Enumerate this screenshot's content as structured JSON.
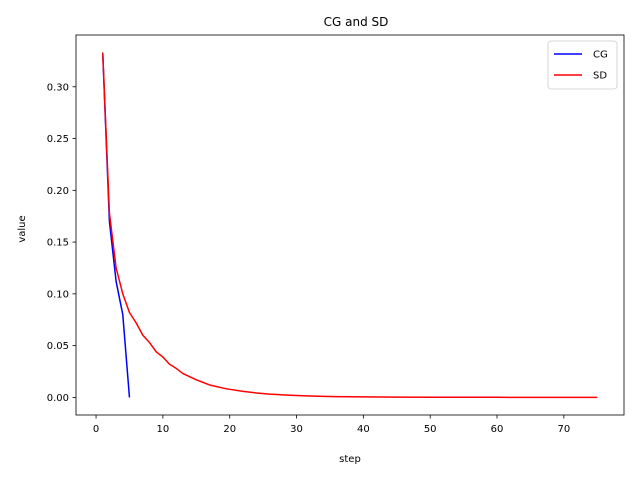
{
  "chart_data": {
    "type": "line",
    "title": "CG and SD",
    "xlabel": "step",
    "ylabel": "value",
    "xlim": [
      -3,
      79
    ],
    "ylim": [
      -0.017,
      0.35
    ],
    "xticks": [
      0,
      10,
      20,
      30,
      40,
      50,
      60,
      70
    ],
    "yticks": [
      0.0,
      0.05,
      0.1,
      0.15,
      0.2,
      0.25,
      0.3
    ],
    "xtick_labels": [
      "0",
      "10",
      "20",
      "30",
      "40",
      "50",
      "60",
      "70"
    ],
    "ytick_labels": [
      "0.00",
      "0.05",
      "0.10",
      "0.15",
      "0.20",
      "0.25",
      "0.30"
    ],
    "grid": false,
    "legend_position": "top-right",
    "series": [
      {
        "name": "CG",
        "color": "#0000ff",
        "x": [
          1,
          2,
          3,
          4,
          5
        ],
        "y": [
          0.333,
          0.17,
          0.112,
          0.08,
          0.0
        ]
      },
      {
        "name": "SD",
        "color": "#ff0000",
        "x": [
          1,
          2,
          3,
          4,
          5,
          6,
          7,
          8,
          9,
          10,
          11,
          12,
          13,
          14,
          15,
          16,
          17,
          18,
          19,
          20,
          22,
          24,
          26,
          28,
          30,
          32,
          34,
          36,
          38,
          40,
          45,
          50,
          55,
          60,
          65,
          70,
          75
        ],
        "y": [
          0.333,
          0.178,
          0.125,
          0.1,
          0.082,
          0.072,
          0.06,
          0.053,
          0.044,
          0.039,
          0.032,
          0.028,
          0.023,
          0.02,
          0.017,
          0.0145,
          0.012,
          0.0105,
          0.009,
          0.0078,
          0.0058,
          0.0043,
          0.0032,
          0.0024,
          0.0018,
          0.0013,
          0.001,
          0.0008,
          0.0006,
          0.0005,
          0.0003,
          0.0002,
          0.00012,
          8e-05,
          5e-05,
          3e-05,
          2e-05
        ]
      }
    ]
  }
}
